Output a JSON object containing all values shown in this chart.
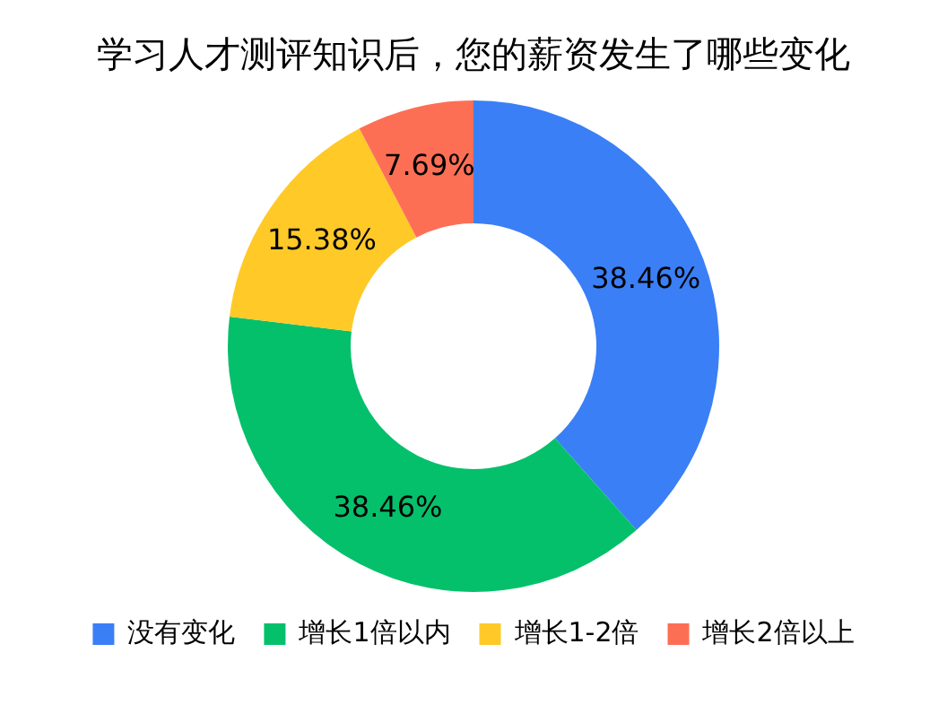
{
  "chart_data": {
    "type": "donut",
    "title": "学习人才测评知识后，您的薪资发生了哪些变化",
    "categories": [
      "没有变化",
      "增长1倍以内",
      "增长1-2倍",
      "增长2倍以上"
    ],
    "values": [
      38.46,
      38.46,
      15.38,
      7.69
    ],
    "value_labels": [
      "38.46%",
      "38.46%",
      "15.38%",
      "7.69%"
    ],
    "colors": [
      "#3a7ff6",
      "#05c06b",
      "#ffc928",
      "#fd6f55"
    ],
    "legend": "bottom"
  }
}
